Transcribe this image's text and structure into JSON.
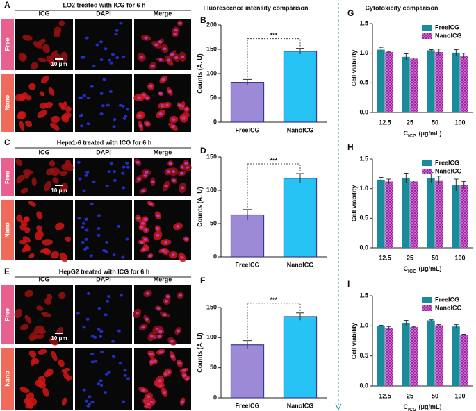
{
  "image_panels": [
    {
      "label": "A",
      "title": "LO2 treated with ICG for 6 h",
      "columns": [
        "ICG",
        "DAPI",
        "Merge"
      ],
      "rows": [
        "Free",
        "Nano"
      ],
      "scale_bar": "10 μm"
    },
    {
      "label": "C",
      "title": "Hepa1-6 treated with ICG for 6 h",
      "columns": [
        "ICG",
        "DAPI",
        "Merge"
      ],
      "rows": [
        "Free",
        "Nano"
      ],
      "scale_bar": "10 μm"
    },
    {
      "label": "E",
      "title": "HepG2 treated with ICG for 6 h",
      "columns": [
        "ICG",
        "DAPI",
        "Merge"
      ],
      "rows": [
        "Free",
        "Nano"
      ],
      "scale_bar": "10 μm"
    }
  ],
  "column_titles": [
    "Fluorescence intensity comparison",
    "Cytotoxicity comparison"
  ],
  "chart_data": [
    {
      "type": "bar",
      "label": "B",
      "ylabel": "Counts (A. U)",
      "categories": [
        "FreeICG",
        "NanoICG"
      ],
      "values": [
        82,
        146
      ],
      "errors": [
        6,
        6
      ],
      "colors": [
        "#9d8ad6",
        "#27c3f5"
      ],
      "annotation": "***",
      "ylim": [
        0,
        200
      ],
      "yticks": [
        0,
        50,
        100,
        150,
        200
      ]
    },
    {
      "type": "bar",
      "label": "D",
      "ylabel": "Counts (A. U)",
      "categories": [
        "FreeICG",
        "NanoICG"
      ],
      "values": [
        63,
        118
      ],
      "errors": [
        8,
        7
      ],
      "colors": [
        "#9d8ad6",
        "#27c3f5"
      ],
      "annotation": "***",
      "ylim": [
        0,
        150
      ],
      "yticks": [
        0,
        50,
        100,
        150
      ]
    },
    {
      "type": "bar",
      "label": "F",
      "ylabel": "Counts (A. U)",
      "categories": [
        "FreeICG",
        "NanoICG"
      ],
      "values": [
        88,
        135
      ],
      "errors": [
        7,
        6
      ],
      "colors": [
        "#9d8ad6",
        "#27c3f5"
      ],
      "annotation": "***",
      "ylim": [
        0,
        150
      ],
      "yticks": [
        0,
        50,
        100,
        150
      ]
    },
    {
      "type": "bar",
      "label": "G",
      "ylabel": "Cell viability",
      "xlabel": [
        "C",
        "ICG",
        "(μg/mL)"
      ],
      "categories": [
        "12.5",
        "25",
        "50",
        "100"
      ],
      "series": [
        {
          "name": "FreeICG",
          "color": "#1b8b9b",
          "values": [
            1.06,
            0.94,
            1.05,
            1.01
          ],
          "errors": [
            0.04,
            0.05,
            0.01,
            0.05
          ]
        },
        {
          "name": "NanoICG",
          "color": "#a321a8",
          "pattern": "checker",
          "values": [
            1.02,
            0.91,
            1.02,
            0.96
          ],
          "errors": [
            0.01,
            0.01,
            0.05,
            0.04
          ]
        }
      ],
      "ylim": [
        0,
        1.5
      ],
      "yticks": [
        {
          "value": 0,
          "label": "0.0"
        },
        0.5,
        {
          "value": 1,
          "label": "1.0"
        },
        1.5
      ]
    },
    {
      "type": "bar",
      "label": "H",
      "ylabel": "Cell viability",
      "xlabel": [
        "C",
        "ICG",
        "(μg/mL)"
      ],
      "categories": [
        "12.5",
        "25",
        "50",
        "100"
      ],
      "series": [
        {
          "name": "FreeICG",
          "color": "#1b8b9b",
          "values": [
            1.15,
            1.18,
            1.18,
            1.06
          ],
          "errors": [
            0.04,
            0.08,
            0.09,
            0.1
          ]
        },
        {
          "name": "NanoICG",
          "color": "#a321a8",
          "pattern": "checker",
          "values": [
            1.12,
            1.12,
            1.14,
            1.06
          ],
          "errors": [
            0.04,
            0.01,
            0.07,
            0.06
          ]
        }
      ],
      "ylim": [
        0,
        1.5
      ],
      "yticks": [
        {
          "value": 0,
          "label": "0.0"
        },
        0.5,
        {
          "value": 1,
          "label": "1.0"
        },
        1.5
      ]
    },
    {
      "type": "bar",
      "label": "I",
      "ylabel": "Cell viability",
      "xlabel": [
        "C",
        "ICG",
        "(μg/mL)"
      ],
      "categories": [
        "12.5",
        "25",
        "50",
        "100"
      ],
      "series": [
        {
          "name": "FreeICG",
          "color": "#1b8b9b",
          "values": [
            1.0,
            1.05,
            1.09,
            0.99
          ],
          "errors": [
            0.01,
            0.04,
            0.01,
            0.03
          ]
        },
        {
          "name": "NanoICG",
          "color": "#a321a8",
          "pattern": "checker",
          "values": [
            0.96,
            0.98,
            1.01,
            0.85
          ],
          "errors": [
            0.03,
            0.01,
            0.01,
            0.01
          ]
        }
      ],
      "ylim": [
        0,
        1.5
      ],
      "yticks": [
        {
          "value": 0,
          "label": "0.0"
        },
        0.5,
        {
          "value": 1,
          "label": "1.0"
        },
        1.5
      ]
    }
  ]
}
